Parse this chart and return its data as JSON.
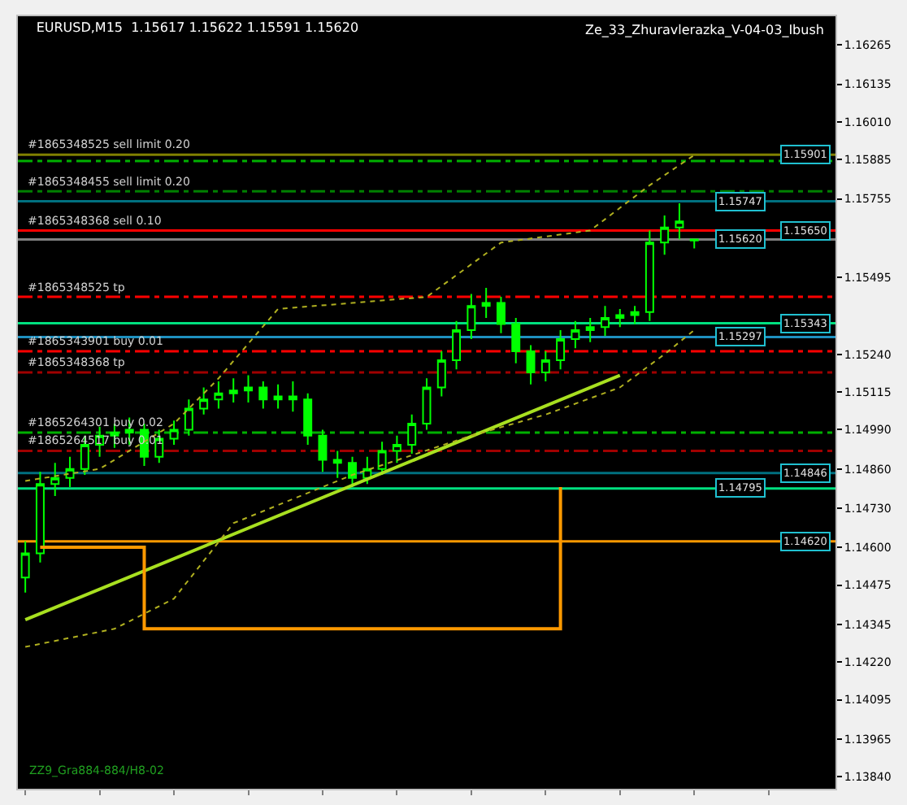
{
  "chart_data": {
    "type": "candlestick",
    "title": "EURUSD,M15  1.15617 1.15622 1.15591 1.15620",
    "subtitle": "Ze_33_Zhuravlerazka_V-04-03_Ibush",
    "categories": [
      null,
      null,
      null,
      null,
      null,
      null,
      null,
      null,
      null,
      null,
      null,
      null,
      null,
      null,
      null,
      null,
      null,
      null,
      null,
      null,
      null,
      null,
      null,
      null,
      null,
      null,
      null,
      null,
      null,
      null,
      null,
      null,
      null,
      null,
      null,
      null,
      null,
      null,
      null,
      null,
      null,
      null,
      null,
      null,
      null,
      null,
      null,
      null,
      null,
      null,
      null,
      null,
      null,
      null,
      null
    ],
    "color": "#00ff00",
    "ohlc": [
      [
        1.145,
        1.1462,
        1.1445,
        1.1458
      ],
      [
        1.1458,
        1.1485,
        1.1455,
        1.1481
      ],
      [
        1.1481,
        1.1488,
        1.1477,
        1.1483
      ],
      [
        1.1483,
        1.149,
        1.148,
        1.1486
      ],
      [
        1.1486,
        1.1497,
        1.1484,
        1.1494
      ],
      [
        1.1494,
        1.15,
        1.149,
        1.1497
      ],
      [
        1.1497,
        1.1501,
        1.1493,
        1.1498
      ],
      [
        1.1498,
        1.1503,
        1.1494,
        1.1499
      ],
      [
        1.1499,
        1.1501,
        1.1487,
        1.149
      ],
      [
        1.149,
        1.1499,
        1.1488,
        1.1496
      ],
      [
        1.1496,
        1.1502,
        1.1494,
        1.1499
      ],
      [
        1.1499,
        1.1509,
        1.1497,
        1.1506
      ],
      [
        1.1506,
        1.1513,
        1.1504,
        1.1509
      ],
      [
        1.1509,
        1.1515,
        1.1506,
        1.1511
      ],
      [
        1.1511,
        1.1516,
        1.1508,
        1.1512
      ],
      [
        1.1512,
        1.1517,
        1.1508,
        1.1513
      ],
      [
        1.1513,
        1.1515,
        1.1506,
        1.1509
      ],
      [
        1.1509,
        1.1514,
        1.1506,
        1.151
      ],
      [
        1.151,
        1.1515,
        1.1505,
        1.1509
      ],
      [
        1.1509,
        1.1511,
        1.1494,
        1.1497
      ],
      [
        1.1497,
        1.1499,
        1.1485,
        1.1489
      ],
      [
        1.1489,
        1.1492,
        1.1483,
        1.1488
      ],
      [
        1.1488,
        1.149,
        1.148,
        1.1483
      ],
      [
        1.1483,
        1.149,
        1.1481,
        1.1486
      ],
      [
        1.1486,
        1.1495,
        1.1484,
        1.1492
      ],
      [
        1.1492,
        1.1497,
        1.1488,
        1.1494
      ],
      [
        1.1494,
        1.1504,
        1.1491,
        1.1501
      ],
      [
        1.1501,
        1.1516,
        1.1499,
        1.1513
      ],
      [
        1.1513,
        1.1525,
        1.151,
        1.1522
      ],
      [
        1.1522,
        1.1535,
        1.1519,
        1.1532
      ],
      [
        1.1532,
        1.1544,
        1.1529,
        1.154
      ],
      [
        1.154,
        1.1546,
        1.1536,
        1.1541
      ],
      [
        1.1541,
        1.1543,
        1.1531,
        1.1534
      ],
      [
        1.1534,
        1.1536,
        1.1521,
        1.1525
      ],
      [
        1.1525,
        1.1527,
        1.1514,
        1.1518
      ],
      [
        1.1518,
        1.1525,
        1.1515,
        1.1522
      ],
      [
        1.1522,
        1.1532,
        1.1519,
        1.1529
      ],
      [
        1.1529,
        1.1535,
        1.1526,
        1.1532
      ],
      [
        1.1532,
        1.1536,
        1.1528,
        1.1533
      ],
      [
        1.1533,
        1.154,
        1.153,
        1.1536
      ],
      [
        1.1536,
        1.1539,
        1.1533,
        1.1537
      ],
      [
        1.1537,
        1.154,
        1.1534,
        1.1538
      ],
      [
        1.1538,
        1.1565,
        1.1535,
        1.1561
      ],
      [
        1.1561,
        1.157,
        1.1557,
        1.1566
      ],
      [
        1.1566,
        1.1574,
        1.1562,
        1.1568
      ],
      [
        1.15617,
        1.15622,
        1.15591,
        1.1562
      ],
      null,
      null,
      null,
      null,
      null,
      null,
      null,
      null,
      null
    ],
    "series": [
      {
        "type": "line",
        "color": "#a8e020",
        "line_style": "solid",
        "values": [
          1.1436,
          null,
          null,
          null,
          null,
          null,
          null,
          null,
          null,
          null,
          null,
          null,
          null,
          null,
          null,
          null,
          null,
          null,
          null,
          null,
          null,
          null,
          null,
          null,
          null,
          null,
          null,
          null,
          null,
          null,
          null,
          null,
          null,
          null,
          null,
          null,
          null,
          null,
          null,
          null,
          1.1517,
          null,
          null,
          null,
          null,
          null,
          null,
          null,
          null,
          null,
          null,
          null,
          null,
          null,
          null
        ]
      },
      {
        "type": "line",
        "color": "#b0b020",
        "line_style": "dotted",
        "values": [
          1.1482,
          null,
          null,
          null,
          null,
          1.1486,
          null,
          null,
          null,
          null,
          1.1501,
          null,
          null,
          1.1516,
          null,
          null,
          null,
          1.1539,
          null,
          null,
          null,
          null,
          1.1541,
          null,
          null,
          null,
          null,
          1.1543,
          null,
          null,
          null,
          null,
          1.1561,
          null,
          null,
          null,
          null,
          null,
          1.1565,
          null,
          null,
          null,
          1.158,
          null,
          null,
          1.159,
          null,
          null,
          null,
          null,
          null,
          null,
          null,
          null,
          null
        ]
      },
      {
        "type": "line",
        "color": "#b0b020",
        "line_style": "dotted",
        "values": [
          1.1427,
          null,
          null,
          null,
          null,
          null,
          1.1433,
          null,
          null,
          null,
          1.1443,
          null,
          null,
          null,
          1.1468,
          null,
          null,
          null,
          null,
          null,
          null,
          null,
          1.1484,
          null,
          null,
          null,
          null,
          null,
          null,
          null,
          1.1497,
          null,
          null,
          null,
          null,
          1.1504,
          null,
          null,
          null,
          null,
          1.1513,
          null,
          null,
          1.1524,
          null,
          1.1532,
          null,
          null,
          null,
          null,
          null,
          null,
          null,
          null,
          null
        ]
      },
      {
        "type": "step",
        "color": "#ff9900",
        "line_style": "solid",
        "values": [
          null,
          1.146,
          1.146,
          1.146,
          1.146,
          1.146,
          1.146,
          1.146,
          1.1433,
          1.1433,
          1.1433,
          1.1433,
          1.1433,
          1.1433,
          1.1433,
          1.1433,
          1.1433,
          1.1433,
          1.1433,
          1.1433,
          1.1433,
          1.1433,
          1.1433,
          1.1433,
          1.1433,
          1.1433,
          1.1433,
          1.1433,
          1.1433,
          1.1433,
          1.1433,
          1.1433,
          1.1433,
          1.1433,
          1.1433,
          1.1433,
          1.148,
          null,
          null,
          null,
          null,
          null,
          null,
          null,
          null,
          null,
          null,
          null,
          null,
          null,
          null,
          null,
          null,
          null,
          null
        ]
      }
    ],
    "ref_lines": [
      {
        "axis": "y",
        "value": 1.15901,
        "label": "#1865348525 sell limit 0.20",
        "color": "#808000",
        "line_style": "solid"
      },
      {
        "axis": "y",
        "value": 1.1588,
        "color": "#00b000",
        "line_style": "dashed"
      },
      {
        "axis": "y",
        "value": 1.1578,
        "label": "#1865348455 sell limit 0.20",
        "color": "#008000",
        "line_style": "dashed"
      },
      {
        "axis": "y",
        "value": 1.15747,
        "color": "#007080",
        "line_style": "solid"
      },
      {
        "axis": "y",
        "value": 1.1565,
        "label": "#1865348368 sell 0.10",
        "color": "#ff0000",
        "line_style": "solid"
      },
      {
        "axis": "y",
        "value": 1.1562,
        "color": "#808080",
        "line_style": "solid"
      },
      {
        "axis": "y",
        "value": 1.1543,
        "label": "#1865348525 tp",
        "color": "#ff0000",
        "line_style": "dashed"
      },
      {
        "axis": "y",
        "value": 1.15343,
        "color": "#00e080",
        "line_style": "solid"
      },
      {
        "axis": "y",
        "value": 1.15297,
        "color": "#1e90c0",
        "line_style": "solid"
      },
      {
        "axis": "y",
        "value": 1.1525,
        "label": "#1865343901 buy 0.01",
        "color": "#ff0000",
        "line_style": "dashed"
      },
      {
        "axis": "y",
        "value": 1.1518,
        "label": "#1865348368 tp",
        "color": "#a00000",
        "line_style": "dashed"
      },
      {
        "axis": "y",
        "value": 1.1498,
        "label": "#1865264301 buy 0.02",
        "color": "#00b000",
        "line_style": "dashed"
      },
      {
        "axis": "y",
        "value": 1.1492,
        "label": "#1865264517 buy 0.01",
        "color": "#a00000",
        "line_style": "dashed"
      },
      {
        "axis": "y",
        "value": 1.14846,
        "color": "#007080",
        "line_style": "solid"
      },
      {
        "axis": "y",
        "value": 1.14795,
        "color": "#00e080",
        "line_style": "solid"
      },
      {
        "axis": "y",
        "value": 1.1462,
        "color": "#ff9900",
        "line_style": "solid"
      }
    ],
    "annotations": [
      {
        "text": "1.15901",
        "y": 1.15901
      },
      {
        "text": "1.15747",
        "y": 1.15747
      },
      {
        "text": "1.15650",
        "y": 1.1565
      },
      {
        "text": "1.15620",
        "y": 1.1562
      },
      {
        "text": "1.15343",
        "y": 1.15343
      },
      {
        "text": "1.15297",
        "y": 1.15297
      },
      {
        "text": "1.14846",
        "y": 1.14846
      },
      {
        "text": "1.14795",
        "y": 1.14795
      },
      {
        "text": "1.14620",
        "y": 1.1462
      },
      "ZZ9_Gra884-884/H8-02"
    ],
    "ylim": [
      1.138,
      1.1636
    ],
    "yticks": [
      1.16265,
      1.16135,
      {
        "value": 1.1601,
        "label": "1.16010"
      },
      1.15885,
      1.15755,
      1.15495,
      {
        "value": 1.1524,
        "label": "1.15240"
      },
      1.15115,
      {
        "value": 1.1499,
        "label": "1.14990"
      },
      {
        "value": 1.1486,
        "label": "1.14860"
      },
      {
        "value": 1.1473,
        "label": "1.14730"
      },
      {
        "value": 1.146,
        "label": "1.14600"
      },
      1.14475,
      1.14345,
      {
        "value": 1.1422,
        "label": "1.14220"
      },
      1.14095,
      1.13965,
      {
        "value": 1.1384,
        "label": "1.13840"
      }
    ],
    "grid": false
  }
}
